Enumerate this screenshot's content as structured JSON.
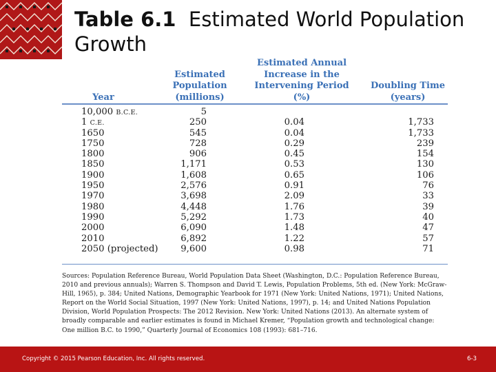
{
  "title": {
    "number": "Table 6.1",
    "text": "Estimated World Population Growth"
  },
  "table": {
    "headers": {
      "year": "Year",
      "population": "Estimated Population (millions)",
      "rate": "Estimated Annual Increase in the Intervening Period (%)",
      "doubling": "Doubling Time (years)"
    },
    "rows": [
      {
        "year": "10,000",
        "era": "B.C.E.",
        "population": "5",
        "rate": "",
        "doubling": ""
      },
      {
        "year": "1",
        "era": "C.E.",
        "population": "250",
        "rate": "0.04",
        "doubling": "1,733"
      },
      {
        "year": "1650",
        "era": "",
        "population": "545",
        "rate": "0.04",
        "doubling": "1,733"
      },
      {
        "year": "1750",
        "era": "",
        "population": "728",
        "rate": "0.29",
        "doubling": "239"
      },
      {
        "year": "1800",
        "era": "",
        "population": "906",
        "rate": "0.45",
        "doubling": "154"
      },
      {
        "year": "1850",
        "era": "",
        "population": "1,171",
        "rate": "0.53",
        "doubling": "130"
      },
      {
        "year": "1900",
        "era": "",
        "population": "1,608",
        "rate": "0.65",
        "doubling": "106"
      },
      {
        "year": "1950",
        "era": "",
        "population": "2,576",
        "rate": "0.91",
        "doubling": "76"
      },
      {
        "year": "1970",
        "era": "",
        "population": "3,698",
        "rate": "2.09",
        "doubling": "33"
      },
      {
        "year": "1980",
        "era": "",
        "population": "4,448",
        "rate": "1.76",
        "doubling": "39"
      },
      {
        "year": "1990",
        "era": "",
        "population": "5,292",
        "rate": "1.73",
        "doubling": "40"
      },
      {
        "year": "2000",
        "era": "",
        "population": "6,090",
        "rate": "1.48",
        "doubling": "47"
      },
      {
        "year": "2010",
        "era": "",
        "population": "6,892",
        "rate": "1.22",
        "doubling": "57"
      },
      {
        "year": "2050 (projected)",
        "era": "",
        "population": "9,600",
        "rate": "0.98",
        "doubling": "71"
      }
    ]
  },
  "sources": "Sources: Population Reference Bureau, World Population Data Sheet (Washington, D.C.: Population Reference Bureau, 2010 and previous annuals); Warren S. Thompson and David T. Lewis, Population Problems, 5th ed. (New York: McGraw-Hill, 1965), p. 384; United Nations, Demographic Yearbook for 1971 (New York: United Nations, 1971); United Nations, Report on the World Social Situation, 1997 (New York: United Nations, 1997), p. 14; and United Nations Population Division, World Population Prospects: The 2012 Revision. New York: United Nations (2013). An alternate system of broadly comparable and earlier estimates is found in Michael Kremer, “Population growth and technological change: One million B.C. to 1990,” Quarterly Journal of Economics 108 (1993): 681–716.",
  "footer": {
    "copyright": "Copyright © 2015 Pearson Education, Inc. All rights reserved.",
    "page": "6-3"
  },
  "colors": {
    "header_text": "#3a70b6",
    "footer_bar": "#b81414",
    "pattern_bg": "#b01818"
  }
}
